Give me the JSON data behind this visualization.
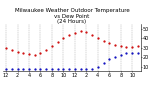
{
  "title": "Milwaukee Weather Outdoor Temperature\nvs Dew Point\n(24 Hours)",
  "temp_x": [
    0,
    1,
    2,
    3,
    4,
    5,
    6,
    7,
    8,
    9,
    10,
    11,
    12,
    13,
    14,
    15,
    16,
    17,
    18,
    19,
    20,
    21,
    22,
    23
  ],
  "temp_y": [
    30,
    28,
    26,
    25,
    23,
    22,
    24,
    28,
    32,
    36,
    40,
    44,
    46,
    48,
    47,
    44,
    41,
    37,
    35,
    33,
    32,
    31,
    31,
    32
  ],
  "dew_x": [
    0,
    1,
    2,
    3,
    4,
    5,
    6,
    7,
    8,
    9,
    10,
    11,
    12,
    13,
    14,
    15,
    16,
    17,
    18,
    19,
    20,
    21,
    22,
    23
  ],
  "dew_y": [
    8,
    8,
    8,
    8,
    8,
    8,
    8,
    8,
    8,
    8,
    8,
    8,
    8,
    8,
    8,
    8,
    10,
    14,
    18,
    20,
    22,
    24,
    24,
    24
  ],
  "temp_color": "#cc0000",
  "dew_color": "#0000bb",
  "bg_color": "#ffffff",
  "ylim": [
    5,
    55
  ],
  "xlim": [
    -0.5,
    23.5
  ],
  "yticks": [
    10,
    20,
    30,
    40,
    50
  ],
  "xticks": [
    0,
    2,
    4,
    6,
    8,
    10,
    12,
    14,
    16,
    18,
    20,
    22
  ],
  "xtick_labels": [
    "12",
    "2",
    "4",
    "6",
    "8",
    "10",
    "12",
    "2",
    "4",
    "6",
    "8",
    "10"
  ],
  "grid_x": [
    0,
    2,
    4,
    6,
    8,
    10,
    12,
    14,
    16,
    18,
    20,
    22
  ],
  "title_fontsize": 4,
  "tick_fontsize": 3.5,
  "markersize": 1.2
}
